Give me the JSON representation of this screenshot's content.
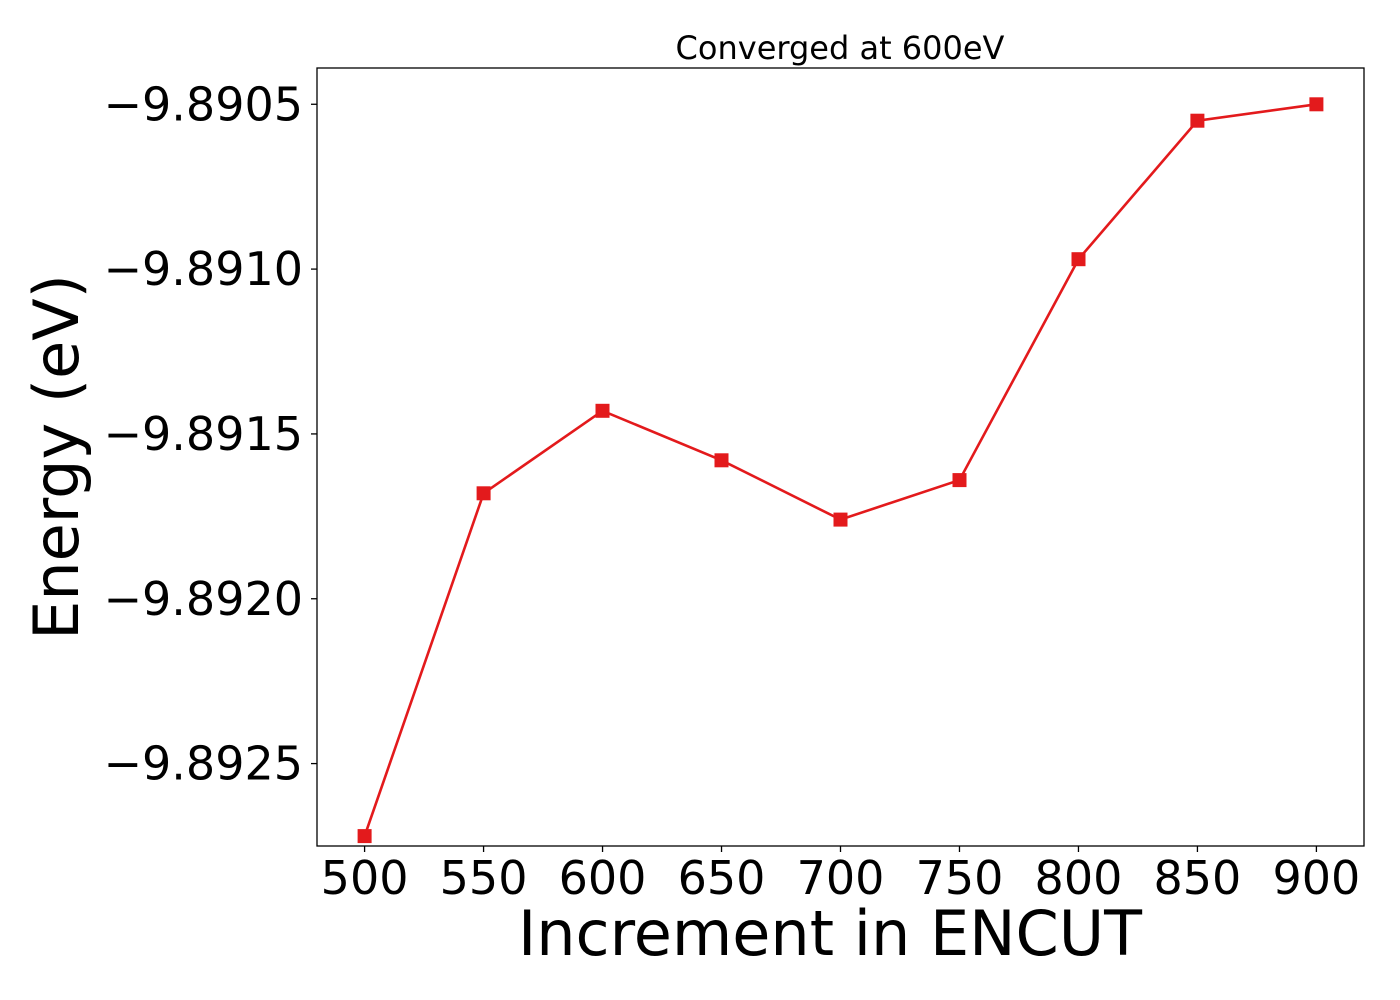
{
  "chart_data": {
    "type": "line",
    "title": "Converged at 600eV",
    "xlabel": "Increment in ENCUT",
    "ylabel": "Energy (eV)",
    "xlim": [
      480,
      920
    ],
    "ylim": [
      -9.89275,
      -9.89039
    ],
    "x_ticks": [
      500,
      550,
      600,
      650,
      700,
      750,
      800,
      850,
      900
    ],
    "x_tick_labels": [
      "500",
      "550",
      "600",
      "650",
      "700",
      "750",
      "800",
      "850",
      "900"
    ],
    "y_ticks": [
      -9.8905,
      -9.891,
      -9.8915,
      -9.892,
      -9.8925
    ],
    "y_tick_labels": [
      "−9.8905",
      "−9.8910",
      "−9.8915",
      "−9.8920",
      "−9.8925"
    ],
    "grid": false,
    "legend": "none",
    "series": [
      {
        "color": "#e31a1c",
        "marker": "square",
        "x": [
          500,
          550,
          600,
          650,
          700,
          750,
          800,
          850,
          900
        ],
        "y": [
          -9.89272,
          -9.89168,
          -9.89143,
          -9.89158,
          -9.89176,
          -9.89164,
          -9.89097,
          -9.89055,
          -9.8905
        ]
      }
    ]
  }
}
